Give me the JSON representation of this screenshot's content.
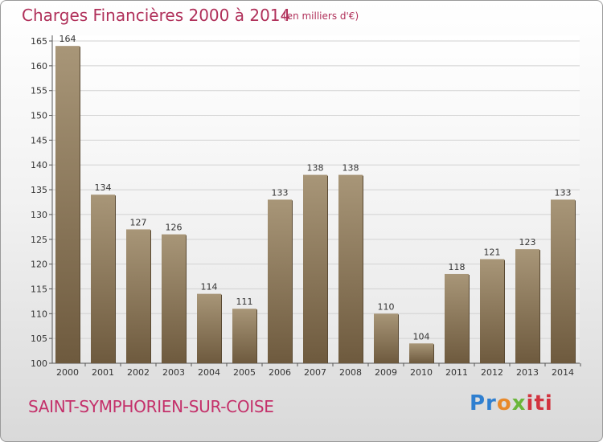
{
  "title": "Charges Financières 2000 à 2014",
  "unit_note": "(en milliers d'€)",
  "commune": "SAINT-SYMPHORIEN-SUR-COISE",
  "logo": {
    "part1": "Pr",
    "part2": "o",
    "part3": "x",
    "part4": "iti"
  },
  "colors": {
    "title": "#b0305a",
    "bar_top": "#a89678",
    "bar_bottom": "#6e5a3e"
  },
  "chart_data": {
    "type": "bar",
    "categories": [
      "2000",
      "2001",
      "2002",
      "2003",
      "2004",
      "2005",
      "2006",
      "2007",
      "2008",
      "2009",
      "2010",
      "2011",
      "2012",
      "2013",
      "2014"
    ],
    "values": [
      164,
      134,
      127,
      126,
      114,
      111,
      133,
      138,
      138,
      110,
      104,
      118,
      121,
      123,
      133
    ],
    "data_labels": [
      "164",
      "134",
      "127",
      "126",
      "114",
      "111",
      "133",
      "138",
      "138",
      "110",
      "104",
      "118",
      "121",
      "123",
      "133"
    ],
    "ylim": [
      100,
      165
    ],
    "yticks": [
      100,
      105,
      110,
      115,
      120,
      125,
      130,
      135,
      140,
      145,
      150,
      155,
      160,
      165
    ],
    "ytick_labels": [
      "100",
      "105",
      "110",
      "115",
      "120",
      "125",
      "130",
      "135",
      "140",
      "145",
      "150",
      "155",
      "160",
      "165"
    ],
    "grid": true,
    "title": "Charges Financières 2000 à 2014",
    "xlabel": "",
    "ylabel": ""
  }
}
